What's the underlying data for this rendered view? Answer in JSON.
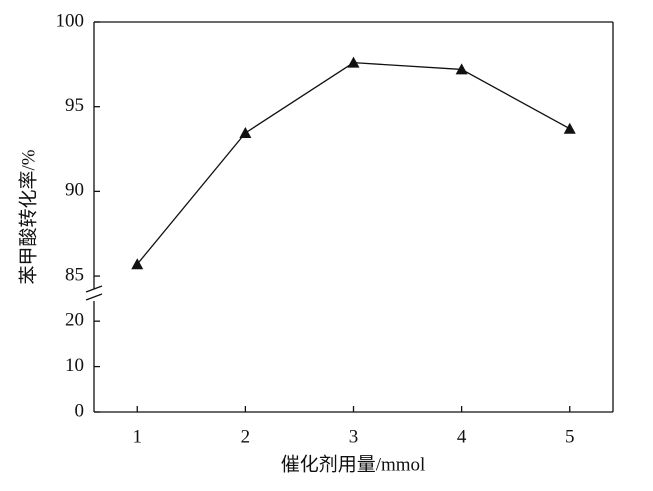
{
  "chart_data": {
    "type": "line",
    "x_label": "催化剂用量/mmol",
    "y_label": "苯甲酸转化率/%",
    "x": [
      1,
      2,
      3,
      4,
      5
    ],
    "xlim": [
      0.6,
      5.4
    ],
    "xticks": [
      1,
      2,
      3,
      4,
      5
    ],
    "y_segments": [
      {
        "ylim": [
          0,
          24
        ],
        "yticks": [
          0,
          10,
          20
        ]
      },
      {
        "ylim": [
          84,
          100
        ],
        "yticks": [
          85,
          90,
          95,
          100
        ]
      }
    ],
    "series": [
      {
        "color": "#111111",
        "marker": "triangle",
        "values": [
          85.7,
          93.45,
          97.6,
          97.2,
          93.7
        ]
      }
    ]
  }
}
